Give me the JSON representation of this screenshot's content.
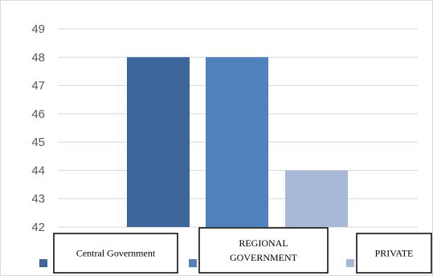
{
  "chart_data": {
    "type": "bar",
    "categories": [
      "Central Government",
      "REGIONAL GOVERNMENT",
      "PRIVATE"
    ],
    "values": [
      48,
      48,
      44
    ],
    "ylim": [
      42,
      49
    ],
    "yticks": [
      42,
      43,
      44,
      45,
      46,
      47,
      48,
      49
    ],
    "grid": true,
    "legend_position": "bottom",
    "legend": [
      {
        "label_lines": [
          "Central Government"
        ],
        "color": "#3d679b"
      },
      {
        "label_lines": [
          "REGIONAL",
          "GOVERNMENT"
        ],
        "color": "#4f81bd"
      },
      {
        "label_lines": [
          "PRIVATE"
        ],
        "color": "#a8b9d8"
      }
    ],
    "colors": [
      "#3d679b",
      "#4f81bd",
      "#a8b9d8"
    ],
    "title": "",
    "xlabel": "",
    "ylabel": ""
  }
}
